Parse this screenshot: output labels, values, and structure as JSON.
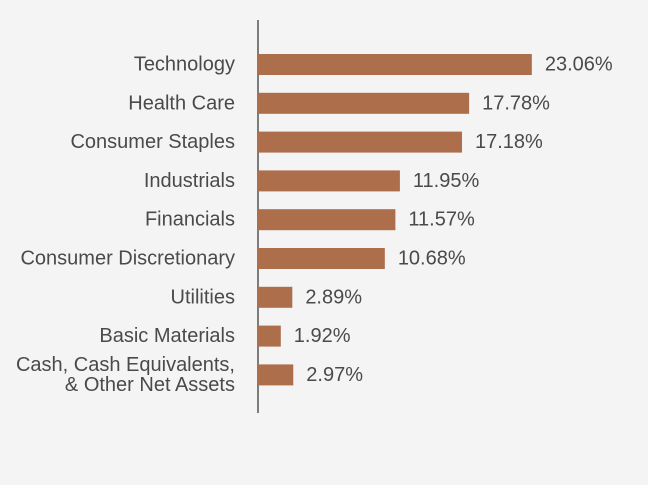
{
  "chart_data": {
    "type": "bar",
    "orientation": "horizontal",
    "categories": [
      [
        "Technology"
      ],
      [
        "Health Care"
      ],
      [
        "Consumer Staples"
      ],
      [
        "Industrials"
      ],
      [
        "Financials"
      ],
      [
        "Consumer Discretionary"
      ],
      [
        "Utilities"
      ],
      [
        "Basic Materials"
      ],
      [
        "Cash, Cash Equivalents,",
        "& Other Net Assets"
      ]
    ],
    "values": [
      23.06,
      17.78,
      17.18,
      11.95,
      11.57,
      10.68,
      2.89,
      1.92,
      2.97
    ],
    "value_labels": [
      "23.06%",
      "17.78%",
      "17.18%",
      "11.95%",
      "11.57%",
      "10.68%",
      "2.89%",
      "1.92%",
      "2.97%"
    ],
    "title": "",
    "xlabel": "",
    "ylabel": "",
    "xlim": [
      0,
      32
    ],
    "grid": false,
    "legend": "none",
    "colors": {
      "bar": "#ad6e4b",
      "axis": "#555555",
      "label_text": "#4a4a4a",
      "background": "#f4f4f4"
    }
  }
}
